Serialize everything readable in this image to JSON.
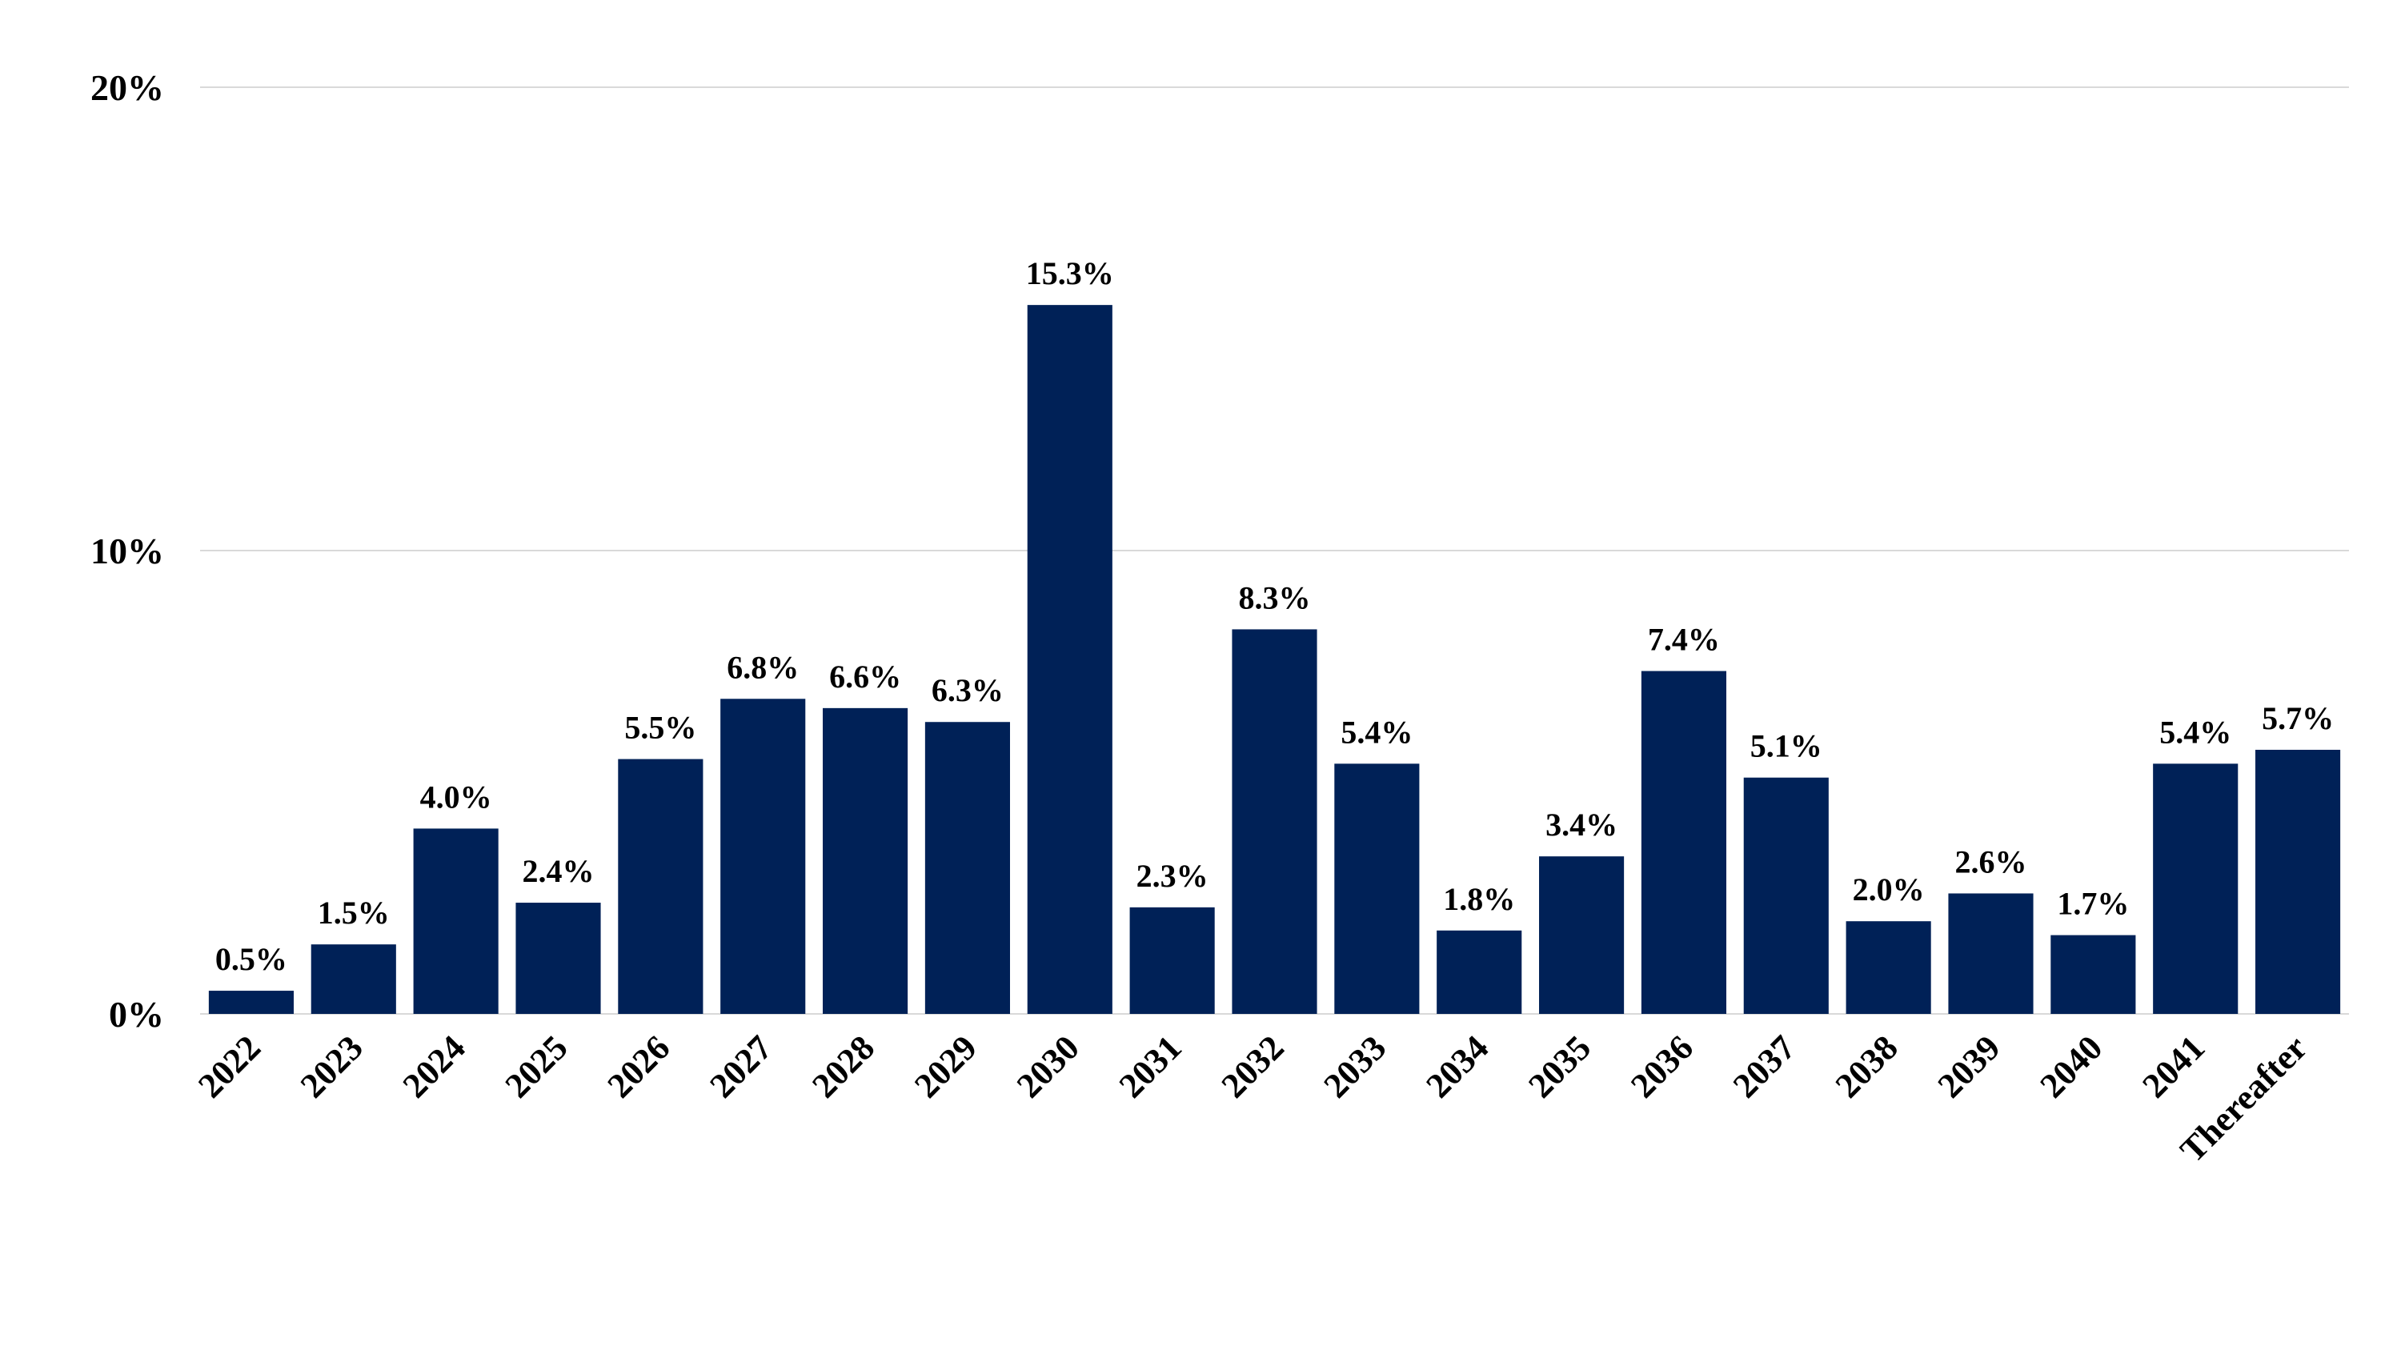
{
  "chart_data": {
    "type": "bar",
    "categories": [
      "2022",
      "2023",
      "2024",
      "2025",
      "2026",
      "2027",
      "2028",
      "2029",
      "2030",
      "2031",
      "2032",
      "2033",
      "2034",
      "2035",
      "2036",
      "2037",
      "2038",
      "2039",
      "2040",
      "2041",
      "Thereafter"
    ],
    "values": [
      0.5,
      1.5,
      4.0,
      2.4,
      5.5,
      6.8,
      6.6,
      6.3,
      15.3,
      2.3,
      8.3,
      5.4,
      1.8,
      3.4,
      7.4,
      5.1,
      2.0,
      2.6,
      1.7,
      5.4,
      5.7
    ],
    "data_labels": [
      "0.5%",
      "1.5%",
      "4.0%",
      "2.4%",
      "5.5%",
      "6.8%",
      "6.6%",
      "6.3%",
      "15.3%",
      "2.3%",
      "8.3%",
      "5.4%",
      "1.8%",
      "3.4%",
      "7.4%",
      "5.1%",
      "2.0%",
      "2.6%",
      "1.7%",
      "5.4%",
      "5.7%"
    ],
    "y_ticks": [
      0,
      10,
      20
    ],
    "y_tick_labels": [
      "0%",
      "10%",
      "20%"
    ],
    "ylim": [
      0,
      20
    ],
    "grid": true,
    "bar_color": "#002157",
    "gridline_color": "#d9d9d9",
    "title": "",
    "xlabel": "",
    "ylabel": ""
  }
}
